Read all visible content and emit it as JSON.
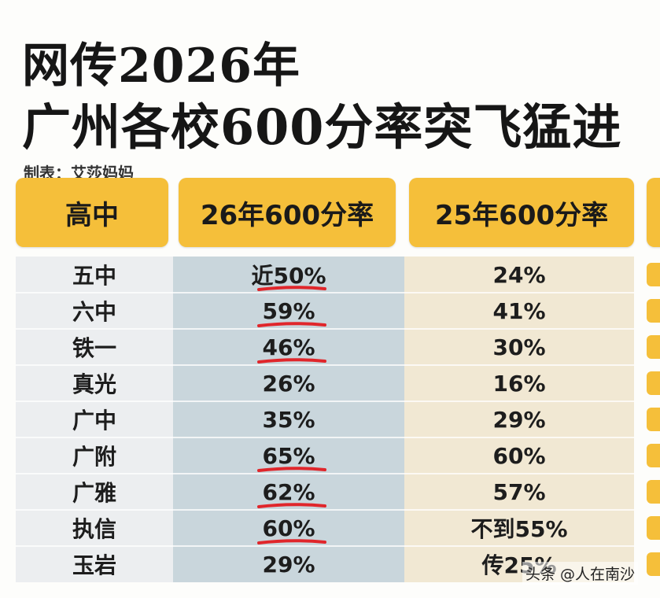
{
  "title": {
    "line1": "网传2026年",
    "line2": "广州各校600分率突飞猛进"
  },
  "credit": "制表：艾莎妈妈",
  "table": {
    "headers": [
      "高中",
      "26年600分率",
      "25年600分率"
    ],
    "rows": [
      {
        "school": "五中",
        "rate_2026": "近50%",
        "rate_2025": "24%",
        "underlined": true
      },
      {
        "school": "六中",
        "rate_2026": "59%",
        "rate_2025": "41%",
        "underlined": true
      },
      {
        "school": "铁一",
        "rate_2026": "46%",
        "rate_2025": "30%",
        "underlined": true
      },
      {
        "school": "真光",
        "rate_2026": "26%",
        "rate_2025": "16%",
        "underlined": false
      },
      {
        "school": "广中",
        "rate_2026": "35%",
        "rate_2025": "29%",
        "underlined": false
      },
      {
        "school": "广附",
        "rate_2026": "65%",
        "rate_2025": "60%",
        "underlined": true
      },
      {
        "school": "广雅",
        "rate_2026": "62%",
        "rate_2025": "57%",
        "underlined": true
      },
      {
        "school": "执信",
        "rate_2026": "60%",
        "rate_2025": "不到55%",
        "underlined": true
      },
      {
        "school": "玉岩",
        "rate_2026": "29%",
        "rate_2025": "传25%",
        "underlined": false
      }
    ]
  },
  "footer": "头条 @人在南沙",
  "colors": {
    "header_yellow": "#f5bf3a",
    "underline_red": "#e0262b"
  }
}
